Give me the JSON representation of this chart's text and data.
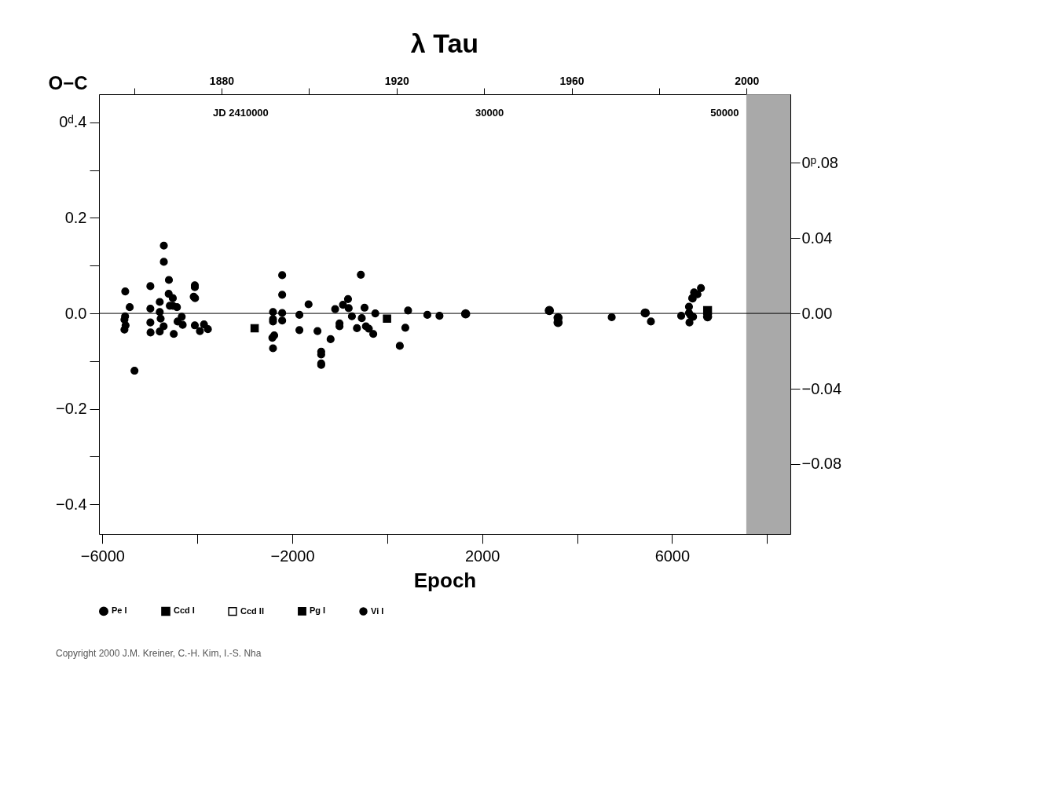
{
  "chart_data": {
    "type": "scatter",
    "title": "λ Tau",
    "xlabel": "Epoch",
    "ylabel": "O−C",
    "legend": "bottom left",
    "xlim": [
      -6072,
      8493
    ],
    "xticks": [
      {
        "value": -6000,
        "label": "−6000"
      },
      {
        "value": -4000,
        "label": null
      },
      {
        "value": -2000,
        "label": "−2000"
      },
      {
        "value": 0,
        "label": null
      },
      2000,
      {
        "value": 4000,
        "label": null
      },
      6000,
      {
        "value": 8000,
        "label": null
      }
    ],
    "x2lim": [
      1852,
      2010
    ],
    "x2ticks": [
      {
        "value": 1860,
        "label": null
      },
      1880,
      {
        "value": 1900,
        "label": null
      },
      1920,
      {
        "value": 1940,
        "label": null
      },
      1960,
      {
        "value": 1980,
        "label": null
      },
      2000
    ],
    "ylim": [
      -0.462,
      0.459
    ],
    "yticks": [
      {
        "value": -0.4,
        "label": "−0.4"
      },
      {
        "value": -0.3,
        "label": null
      },
      {
        "value": -0.2,
        "label": "−0.2"
      },
      {
        "value": -0.1,
        "label": null
      },
      {
        "value": 0,
        "label": "0.0"
      },
      {
        "value": 0.1,
        "label": null
      },
      0.2,
      {
        "value": 0.3,
        "label": null
      },
      {
        "value": 0.4,
        "label": "0ᵈ.4"
      }
    ],
    "y2lim": [
      -0.1172,
      0.1165
    ],
    "y2ticks": [
      {
        "value": -0.08,
        "label": "−0.08"
      },
      {
        "value": -0.04,
        "label": "−0.04"
      },
      {
        "value": 0,
        "label": "0.00"
      },
      0.04,
      {
        "value": 0.08,
        "label": "0ᵖ.08"
      }
    ],
    "ref_lines": [
      {
        "axis": "y",
        "value": 0,
        "label": null,
        "color": "#000000"
      }
    ],
    "bands": [
      {
        "axis": "x",
        "from": 7565,
        "to": 8493,
        "label": null,
        "color": "#9a9a9a"
      }
    ],
    "annotations": [
      "JD 2410000",
      "30000",
      "50000",
      "Copyright 2000 J.M. Kreiner, C.-H. Kim, I.-S. Nha"
    ],
    "series": [
      {
        "name": "Pe I",
        "color": "#000000",
        "marker": "circle",
        "x": [
          1652,
          3415,
          3599,
          3599,
          5435,
          6749
        ],
        "values": [
          -0.001,
          0.006,
          -0.009,
          -0.019,
          0.001,
          -0.007
        ]
      },
      {
        "name": "Ccd I",
        "color": "#000000",
        "marker": "square",
        "x": [
          6749
        ],
        "values": [
          0.006
        ]
      },
      {
        "name": "Ccd II",
        "color": "#000000",
        "marker": "square"
      },
      {
        "name": "Pg I",
        "color": "#000000",
        "marker": "square",
        "x": [
          -2793,
          -4
        ],
        "values": [
          -0.031,
          -0.011
        ]
      },
      {
        "name": "Vi I",
        "color": "#000000",
        "marker": "circle",
        "x": [
          -5519,
          -5425,
          -5522,
          -5536,
          -5512,
          -5536,
          -5324,
          -4990,
          -4990,
          -4990,
          -4986,
          -4706,
          -4706,
          -4599,
          -4792,
          -4792,
          -4773,
          -4792,
          -4604,
          -4517,
          -4580,
          -4517,
          -4430,
          -4710,
          -4497,
          -4329,
          -4416,
          -4309,
          -4053,
          -4053,
          -4077,
          -4048,
          -4053,
          -3860,
          -3946,
          -3778,
          -2213,
          -2213,
          -2406,
          -2213,
          -2406,
          -2406,
          -2213,
          -2381,
          -2420,
          -2406,
          -1850,
          -1850,
          -1657,
          -1469,
          -1391,
          -1391,
          -1391,
          -1391,
          -1193,
          -1097,
          -1005,
          -1005,
          -932,
          -826,
          -812,
          -744,
          -556,
          -478,
          -536,
          -638,
          -449,
          -387,
          -294,
          -251,
          439,
          381,
          265,
          845,
          1101,
          4729,
          5555,
          6193,
          6357,
          6357,
          6390,
          6444,
          6367,
          6425,
          6435,
          6464,
          6536,
          6609
        ],
        "values": [
          0.046,
          0.013,
          -0.006,
          -0.013,
          -0.025,
          -0.034,
          -0.12,
          0.057,
          0.01,
          -0.019,
          -0.04,
          0.142,
          0.108,
          0.07,
          0.024,
          0.003,
          -0.011,
          -0.038,
          0.041,
          0.032,
          0.016,
          0.016,
          0.013,
          -0.027,
          -0.043,
          -0.007,
          -0.017,
          -0.024,
          0.059,
          0.055,
          0.035,
          0.032,
          -0.025,
          -0.023,
          -0.037,
          -0.033,
          0.08,
          0.039,
          0.003,
          0.001,
          -0.012,
          -0.017,
          -0.015,
          -0.046,
          -0.051,
          -0.073,
          -0.003,
          -0.035,
          0.019,
          -0.037,
          -0.08,
          -0.086,
          -0.105,
          -0.108,
          -0.054,
          0.009,
          -0.021,
          -0.027,
          0.018,
          0.03,
          0.011,
          -0.006,
          0.081,
          0.012,
          -0.01,
          -0.031,
          -0.027,
          -0.032,
          -0.043,
          0.0,
          0.006,
          -0.03,
          -0.068,
          -0.003,
          -0.005,
          -0.008,
          -0.017,
          -0.005,
          0.014,
          0.001,
          -0.004,
          -0.007,
          -0.019,
          0.032,
          0.031,
          0.044,
          0.04,
          0.053
        ]
      }
    ]
  }
}
